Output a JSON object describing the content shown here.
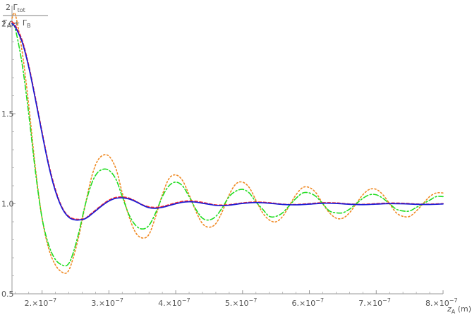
{
  "chart_data": {
    "type": "line",
    "title": "",
    "xlabel": "z_A (m)",
    "ylabel": "2 Γ_tot / (Γ_A + Γ_B)",
    "ylabel_parts": {
      "num_prefix": "2 Γ",
      "num_sub": "tot",
      "den_1": "Γ",
      "den_1_sub": "A",
      "den_plus": " + Γ",
      "den_2_sub": "B"
    },
    "xlabel_parts": {
      "main": "z",
      "sub": "A",
      "unit": " (m)"
    },
    "xlim": [
      1.55e-07,
      8e-07
    ],
    "ylim": [
      0.5,
      2.1
    ],
    "x_ticks": [
      {
        "value": 2e-07,
        "label": "2.×10",
        "exp": "−7"
      },
      {
        "value": 3e-07,
        "label": "3.×10",
        "exp": "−7"
      },
      {
        "value": 4e-07,
        "label": "4.×10",
        "exp": "−7"
      },
      {
        "value": 5e-07,
        "label": "5.×10",
        "exp": "−7"
      },
      {
        "value": 6e-07,
        "label": "6.×10",
        "exp": "−7"
      },
      {
        "value": 7e-07,
        "label": "7.×10",
        "exp": "−7"
      },
      {
        "value": 8e-07,
        "label": "8.×10",
        "exp": "−7"
      }
    ],
    "y_ticks": [
      {
        "value": 0.5,
        "label": "0.5"
      },
      {
        "value": 1.0,
        "label": "1.0"
      },
      {
        "value": 1.5,
        "label": "1.5"
      },
      {
        "value": 2.0,
        "label": "2.0"
      }
    ],
    "grid": false,
    "legend": "none",
    "series": [
      {
        "color": "#f08a24",
        "dash": "2,3",
        "width": 1.6,
        "x": [
          1.55e-07,
          1.6e-07,
          1.7e-07,
          1.8e-07,
          1.9e-07,
          2e-07,
          2.1e-07,
          2.2e-07,
          2.3e-07,
          2.38e-07,
          2.45e-07,
          2.55e-07,
          2.65e-07,
          2.75e-07,
          2.85e-07,
          2.98e-07,
          3.1e-07,
          3.2e-07,
          3.3e-07,
          3.4e-07,
          3.5e-07,
          3.6e-07,
          3.7e-07,
          3.8e-07,
          3.9e-07,
          4e-07,
          4.1e-07,
          4.2e-07,
          4.3e-07,
          4.4e-07,
          4.5e-07,
          4.6e-07,
          4.7e-07,
          4.8e-07,
          4.9e-07,
          5e-07,
          5.1e-07,
          5.2e-07,
          5.3e-07,
          5.4e-07,
          5.5e-07,
          5.6e-07,
          5.7e-07,
          5.8e-07,
          5.9e-07,
          6e-07,
          6.1e-07,
          6.2e-07,
          6.3e-07,
          6.4e-07,
          6.5e-07,
          6.6e-07,
          6.7e-07,
          6.8e-07,
          6.9e-07,
          7e-07,
          7.1e-07,
          7.2e-07,
          7.3e-07,
          7.4e-07,
          7.5e-07,
          7.6e-07,
          7.7e-07,
          7.8e-07,
          7.9e-07,
          8e-07
        ],
        "y": [
          2.03,
          2.05,
          1.85,
          1.55,
          1.2,
          0.92,
          0.75,
          0.66,
          0.62,
          0.62,
          0.68,
          0.82,
          1.0,
          1.16,
          1.25,
          1.27,
          1.2,
          1.06,
          0.93,
          0.84,
          0.81,
          0.83,
          0.93,
          1.05,
          1.14,
          1.16,
          1.13,
          1.05,
          0.96,
          0.89,
          0.87,
          0.89,
          0.96,
          1.05,
          1.11,
          1.12,
          1.09,
          1.02,
          0.95,
          0.91,
          0.9,
          0.93,
          0.99,
          1.05,
          1.09,
          1.09,
          1.06,
          1.0,
          0.95,
          0.92,
          0.92,
          0.95,
          1.0,
          1.05,
          1.08,
          1.08,
          1.05,
          1.0,
          0.95,
          0.93,
          0.93,
          0.96,
          1.0,
          1.04,
          1.06,
          1.06
        ]
      },
      {
        "color": "#22dd22",
        "dash": "7,3,2,3",
        "width": 1.6,
        "x": [
          1.55e-07,
          1.6e-07,
          1.7e-07,
          1.8e-07,
          1.9e-07,
          2e-07,
          2.1e-07,
          2.2e-07,
          2.3e-07,
          2.38e-07,
          2.45e-07,
          2.55e-07,
          2.65e-07,
          2.75e-07,
          2.85e-07,
          2.98e-07,
          3.1e-07,
          3.2e-07,
          3.3e-07,
          3.4e-07,
          3.5e-07,
          3.6e-07,
          3.7e-07,
          3.8e-07,
          3.9e-07,
          4e-07,
          4.1e-07,
          4.2e-07,
          4.3e-07,
          4.4e-07,
          4.5e-07,
          4.6e-07,
          4.7e-07,
          4.8e-07,
          4.9e-07,
          5e-07,
          5.1e-07,
          5.2e-07,
          5.3e-07,
          5.4e-07,
          5.5e-07,
          5.6e-07,
          5.7e-07,
          5.8e-07,
          5.9e-07,
          6e-07,
          6.1e-07,
          6.2e-07,
          6.3e-07,
          6.4e-07,
          6.5e-07,
          6.6e-07,
          6.7e-07,
          6.8e-07,
          6.9e-07,
          7e-07,
          7.1e-07,
          7.2e-07,
          7.3e-07,
          7.4e-07,
          7.5e-07,
          7.6e-07,
          7.7e-07,
          7.8e-07,
          7.9e-07,
          8e-07
        ],
        "y": [
          2.0,
          1.97,
          1.78,
          1.5,
          1.18,
          0.92,
          0.77,
          0.69,
          0.66,
          0.66,
          0.71,
          0.84,
          1.0,
          1.12,
          1.18,
          1.19,
          1.14,
          1.04,
          0.94,
          0.88,
          0.86,
          0.88,
          0.95,
          1.04,
          1.1,
          1.12,
          1.1,
          1.04,
          0.97,
          0.92,
          0.91,
          0.93,
          0.98,
          1.04,
          1.07,
          1.08,
          1.06,
          1.01,
          0.97,
          0.93,
          0.93,
          0.95,
          0.99,
          1.03,
          1.06,
          1.06,
          1.04,
          1.0,
          0.96,
          0.95,
          0.95,
          0.97,
          1.0,
          1.03,
          1.05,
          1.05,
          1.03,
          1.0,
          0.97,
          0.96,
          0.96,
          0.98,
          1.0,
          1.02,
          1.04,
          1.04
        ]
      },
      {
        "color": "#ff2a2a",
        "dash": "4,3",
        "width": 1.6,
        "x": [
          1.55e-07,
          1.6e-07,
          1.7e-07,
          1.8e-07,
          1.9e-07,
          2e-07,
          2.1e-07,
          2.2e-07,
          2.3e-07,
          2.4e-07,
          2.5e-07,
          2.6e-07,
          2.65e-07,
          2.7e-07,
          2.8e-07,
          2.9e-07,
          3e-07,
          3.1e-07,
          3.2e-07,
          3.3e-07,
          3.4e-07,
          3.5e-07,
          3.6e-07,
          3.7e-07,
          3.8e-07,
          3.9e-07,
          4e-07,
          4.1e-07,
          4.2e-07,
          4.3e-07,
          4.4e-07,
          4.5e-07,
          4.6e-07,
          4.7e-07,
          4.8e-07,
          5e-07,
          5.2e-07,
          5.4e-07,
          5.6e-07,
          5.8e-07,
          6e-07,
          6.2e-07,
          6.4e-07,
          6.6e-07,
          6.8e-07,
          7e-07,
          7.2e-07,
          7.4e-07,
          7.6e-07,
          7.8e-07,
          8e-07
        ],
        "y": [
          2.01,
          1.99,
          1.91,
          1.77,
          1.59,
          1.4,
          1.22,
          1.08,
          0.98,
          0.93,
          0.915,
          0.915,
          0.92,
          0.935,
          0.965,
          0.995,
          1.02,
          1.035,
          1.038,
          1.032,
          1.015,
          0.995,
          0.983,
          0.98,
          0.985,
          0.995,
          1.005,
          1.013,
          1.016,
          1.014,
          1.008,
          1.0,
          0.994,
          0.993,
          0.995,
          1.005,
          1.01,
          1.006,
          0.998,
          0.996,
          1.001,
          1.006,
          1.005,
          0.999,
          0.997,
          1.001,
          1.004,
          1.003,
          0.999,
          0.998,
          1.001
        ]
      },
      {
        "color": "#1a1ad6",
        "dash": "",
        "width": 1.7,
        "x": [
          1.55e-07,
          1.6e-07,
          1.7e-07,
          1.8e-07,
          1.9e-07,
          2e-07,
          2.1e-07,
          2.2e-07,
          2.3e-07,
          2.4e-07,
          2.5e-07,
          2.6e-07,
          2.65e-07,
          2.7e-07,
          2.8e-07,
          2.9e-07,
          3e-07,
          3.1e-07,
          3.2e-07,
          3.3e-07,
          3.4e-07,
          3.5e-07,
          3.6e-07,
          3.7e-07,
          3.8e-07,
          3.9e-07,
          4e-07,
          4.1e-07,
          4.2e-07,
          4.3e-07,
          4.4e-07,
          4.5e-07,
          4.6e-07,
          4.7e-07,
          4.8e-07,
          5e-07,
          5.2e-07,
          5.4e-07,
          5.6e-07,
          5.8e-07,
          6e-07,
          6.2e-07,
          6.4e-07,
          6.6e-07,
          6.8e-07,
          7e-07,
          7.2e-07,
          7.4e-07,
          7.6e-07,
          7.8e-07,
          8e-07
        ],
        "y": [
          2.0,
          1.98,
          1.9,
          1.76,
          1.58,
          1.39,
          1.21,
          1.07,
          0.975,
          0.925,
          0.91,
          0.912,
          0.918,
          0.93,
          0.96,
          0.99,
          1.015,
          1.03,
          1.033,
          1.027,
          1.012,
          0.993,
          0.978,
          0.975,
          0.98,
          0.99,
          1.0,
          1.008,
          1.011,
          1.009,
          1.003,
          0.997,
          0.991,
          0.99,
          0.992,
          1.002,
          1.007,
          1.003,
          0.996,
          0.994,
          0.998,
          1.003,
          1.002,
          0.997,
          0.995,
          0.998,
          1.001,
          1.0,
          0.997,
          0.996,
          0.999
        ]
      }
    ]
  }
}
